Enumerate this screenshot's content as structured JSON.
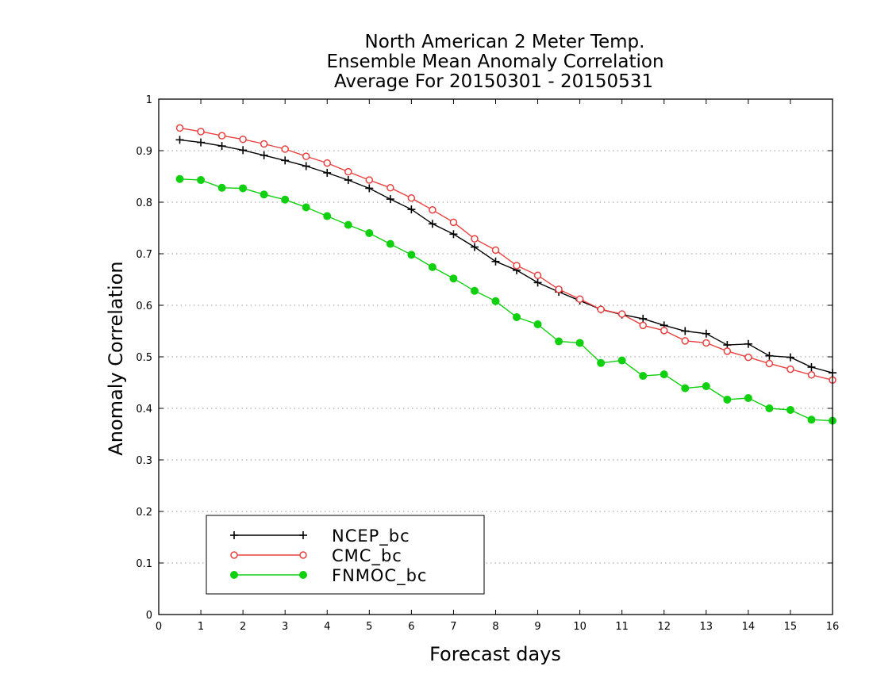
{
  "chart_data": {
    "type": "line",
    "title_lines": [
      "North American 2 Meter Temp.",
      "Ensemble Mean Anomaly Correlation",
      "Average For 20150301 - 20150531"
    ],
    "xlabel": "Forecast days",
    "ylabel": "Anomaly Correlation",
    "xlim": [
      0,
      16
    ],
    "ylim": [
      0,
      1
    ],
    "x_ticks": [
      0,
      1,
      2,
      3,
      4,
      5,
      6,
      7,
      8,
      9,
      10,
      11,
      12,
      13,
      14,
      15,
      16
    ],
    "y_ticks": [
      0,
      0.1,
      0.2,
      0.3,
      0.4,
      0.5,
      0.6,
      0.7,
      0.8,
      0.9,
      1
    ],
    "y_tick_labels": [
      "0",
      "0.1",
      "0.2",
      "0.3",
      "0.4",
      "0.5",
      "0.6",
      "0.7",
      "0.8",
      "0.9",
      "1"
    ],
    "grid": "horizontal-dotted",
    "legend_position": "bottom-left",
    "x": [
      0.5,
      1,
      1.5,
      2,
      2.5,
      3,
      3.5,
      4,
      4.5,
      5,
      5.5,
      6,
      6.5,
      7,
      7.5,
      8,
      8.5,
      9,
      9.5,
      10,
      10.5,
      11,
      11.5,
      12,
      12.5,
      13,
      13.5,
      14,
      14.5,
      15,
      15.5,
      16
    ],
    "series": [
      {
        "name": "NCEP_bc",
        "color": "#000000",
        "marker": "plus",
        "values": [
          0.921,
          0.916,
          0.909,
          0.901,
          0.891,
          0.881,
          0.87,
          0.857,
          0.843,
          0.827,
          0.806,
          0.786,
          0.758,
          0.738,
          0.713,
          0.685,
          0.668,
          0.644,
          0.626,
          0.609,
          0.592,
          0.582,
          0.574,
          0.561,
          0.55,
          0.545,
          0.523,
          0.525,
          0.502,
          0.499,
          0.48,
          0.469
        ]
      },
      {
        "name": "CMC_bc",
        "color": "#e8403f",
        "marker": "circle-open",
        "values": [
          0.944,
          0.937,
          0.929,
          0.922,
          0.913,
          0.903,
          0.889,
          0.876,
          0.859,
          0.843,
          0.828,
          0.808,
          0.785,
          0.761,
          0.729,
          0.707,
          0.677,
          0.658,
          0.631,
          0.612,
          0.592,
          0.583,
          0.561,
          0.551,
          0.531,
          0.527,
          0.511,
          0.499,
          0.487,
          0.476,
          0.465,
          0.455
        ]
      },
      {
        "name": "FNMOC_bc",
        "color": "#10d010",
        "marker": "circle-filled",
        "values": [
          0.845,
          0.843,
          0.828,
          0.827,
          0.815,
          0.805,
          0.79,
          0.773,
          0.756,
          0.74,
          0.719,
          0.698,
          0.674,
          0.652,
          0.628,
          0.608,
          0.577,
          0.563,
          0.53,
          0.527,
          0.488,
          0.493,
          0.463,
          0.466,
          0.439,
          0.443,
          0.417,
          0.42,
          0.4,
          0.397,
          0.378,
          0.376
        ]
      }
    ]
  }
}
